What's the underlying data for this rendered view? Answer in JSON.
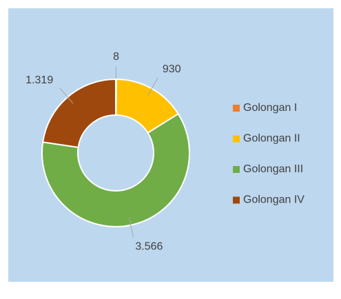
{
  "chart_data": {
    "type": "donut",
    "categories": [
      "Golongan I",
      "Golongan II",
      "Golongan III",
      "Golongan IV"
    ],
    "values": [
      8,
      930,
      3566,
      1319
    ],
    "value_labels": [
      "8",
      "930",
      "3.566",
      "1.319"
    ],
    "colors": [
      "#ED7D31",
      "#FFC000",
      "#70AD47",
      "#9E480E"
    ],
    "legend": "right"
  }
}
